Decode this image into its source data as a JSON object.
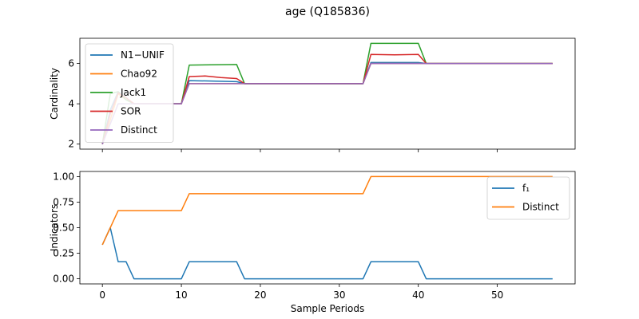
{
  "figure": {
    "title": "age (Q185836)"
  },
  "chart_data": [
    {
      "type": "line",
      "title": "age (Q185836)",
      "xlabel": "",
      "ylabel": "Cardinality",
      "xlim": [
        -2.85,
        59.85
      ],
      "ylim": [
        1.75,
        7.25
      ],
      "yticks": [
        2,
        4,
        6
      ],
      "xticks": [
        0,
        10,
        20,
        30,
        40,
        50
      ],
      "grid": false,
      "legend_position": "upper-left",
      "series": [
        {
          "name": "N1−UNIF",
          "color": "#1f77b4",
          "x": [
            0,
            1,
            2,
            3,
            4,
            10,
            11,
            17,
            18,
            33,
            34,
            40,
            41,
            57
          ],
          "y": [
            2,
            3.7,
            4.6,
            4.3,
            4,
            4,
            5.15,
            5.1,
            5,
            5,
            6.05,
            6.05,
            6,
            6
          ]
        },
        {
          "name": "Chao92",
          "color": "#ff7f0e",
          "x": [
            0,
            1,
            2,
            3,
            4,
            10,
            11,
            17,
            18,
            33,
            34,
            40,
            41,
            57
          ],
          "y": [
            2,
            3.2,
            4.5,
            4.2,
            4,
            4,
            5,
            5,
            5,
            5,
            6,
            6,
            6,
            6
          ]
        },
        {
          "name": "Jack1",
          "color": "#2ca02c",
          "x": [
            0,
            1,
            2,
            3,
            4,
            10,
            11,
            17,
            18,
            33,
            34,
            40,
            41,
            57
          ],
          "y": [
            2,
            4.5,
            4.6,
            4.2,
            4,
            4,
            5.92,
            5.95,
            5,
            5,
            7,
            7,
            6,
            6
          ]
        },
        {
          "name": "SOR",
          "color": "#d62728",
          "x": [
            0,
            1,
            2,
            3,
            4,
            10,
            11,
            13,
            15,
            17,
            18,
            33,
            34,
            37,
            40,
            41,
            57
          ],
          "y": [
            2,
            3.5,
            4.55,
            4.3,
            4,
            4,
            5.35,
            5.38,
            5.3,
            5.25,
            5,
            5,
            6.45,
            6.43,
            6.45,
            6,
            6
          ]
        },
        {
          "name": "Distinct",
          "color": "#9467bd",
          "x": [
            0,
            1,
            2,
            3,
            4,
            10,
            11,
            17,
            18,
            33,
            34,
            40,
            41,
            57
          ],
          "y": [
            2,
            3,
            4,
            4,
            4,
            4,
            5,
            5,
            5,
            5,
            6,
            6,
            6,
            6
          ]
        }
      ]
    },
    {
      "type": "line",
      "title": "",
      "xlabel": "Sample Periods",
      "ylabel": "Indicators",
      "xlim": [
        -2.85,
        59.85
      ],
      "ylim": [
        -0.05,
        1.05
      ],
      "yticks": [
        "0.00",
        "0.25",
        "0.50",
        "0.75",
        "1.00"
      ],
      "xticks": [
        0,
        10,
        20,
        30,
        40,
        50
      ],
      "grid": false,
      "legend_position": "upper-right",
      "series": [
        {
          "name": "f₁",
          "color": "#1f77b4",
          "x": [
            0,
            1,
            2,
            3,
            4,
            10,
            11,
            17,
            18,
            33,
            34,
            40,
            41,
            57
          ],
          "y": [
            0.333,
            0.5,
            0.167,
            0.167,
            0,
            0,
            0.167,
            0.167,
            0,
            0,
            0.167,
            0.167,
            0,
            0
          ]
        },
        {
          "name": "Distinct",
          "color": "#ff7f0e",
          "x": [
            0,
            2,
            10,
            11,
            33,
            34,
            57
          ],
          "y": [
            0.333,
            0.667,
            0.667,
            0.833,
            0.833,
            1,
            1
          ]
        }
      ]
    }
  ]
}
